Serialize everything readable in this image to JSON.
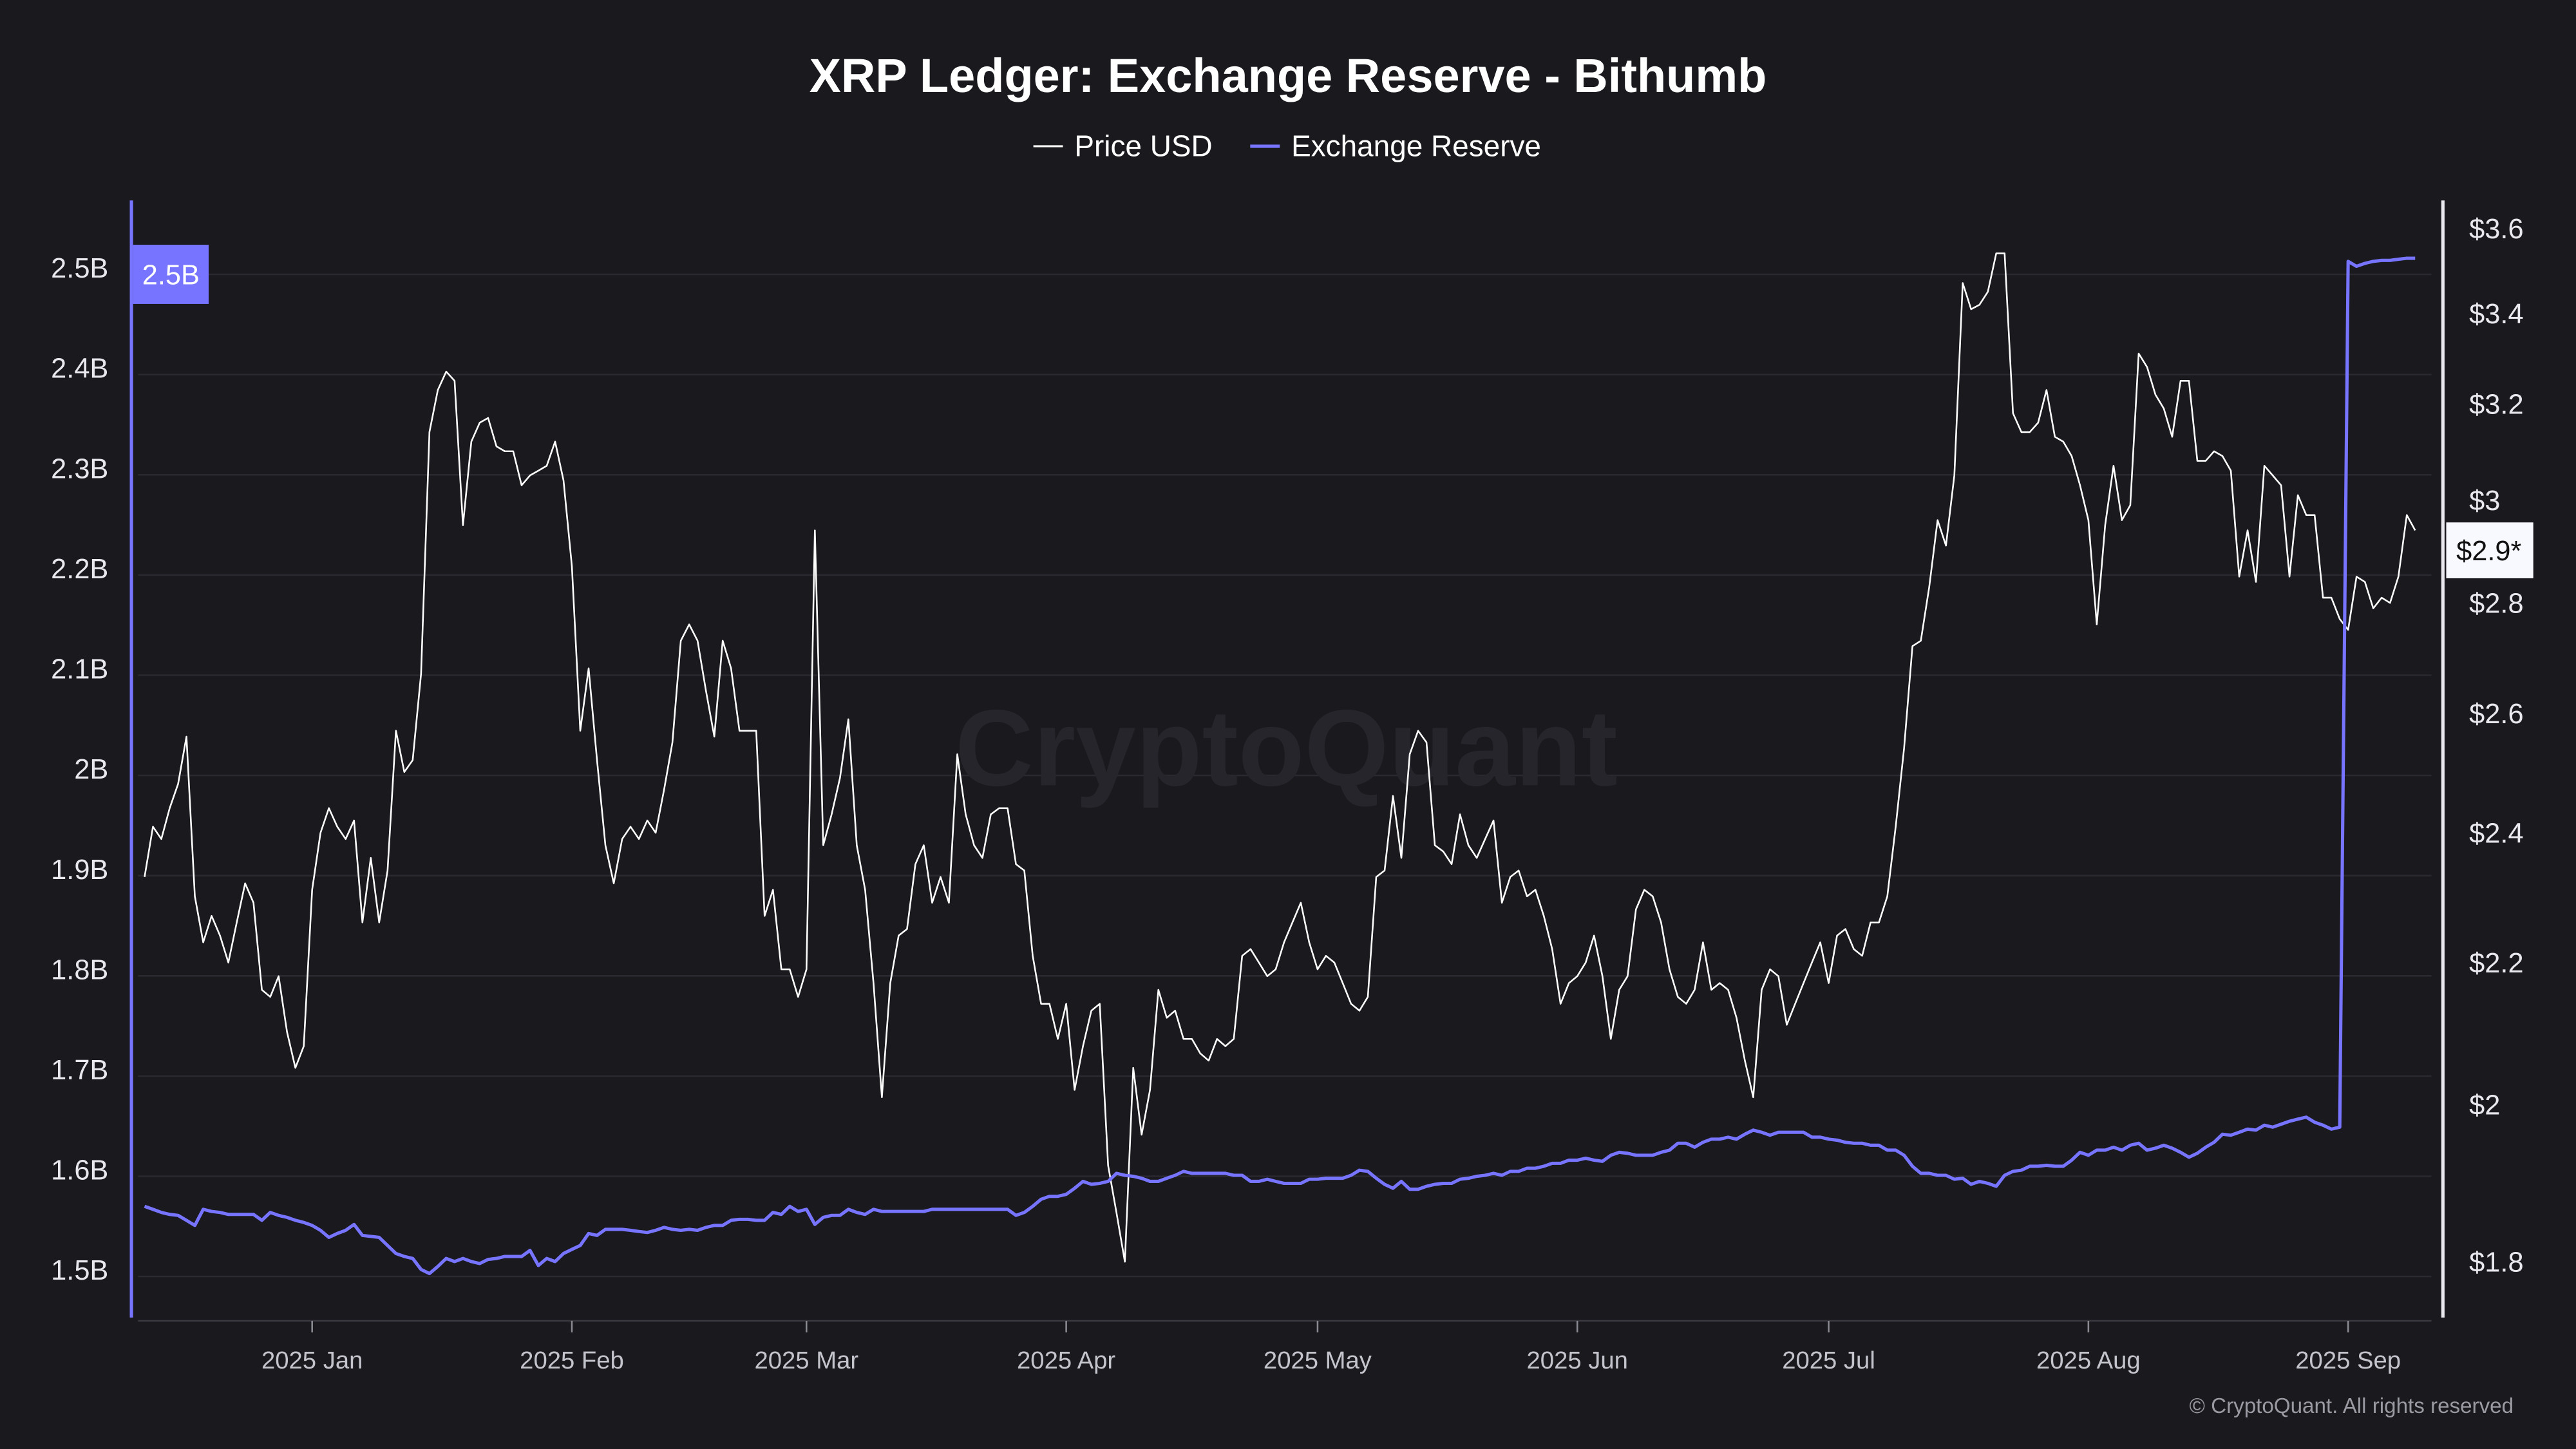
{
  "chart_data": {
    "type": "line",
    "title": "XRP Ledger: Exchange Reserve - Bithumb",
    "legend": {
      "placement": "top-center",
      "entries": [
        "Price USD",
        "Exchange Reserve"
      ]
    },
    "watermark": "CryptoQuant",
    "copyright": "© CryptoQuant. All rights reserved",
    "grid": true,
    "colors": {
      "background": "#1a191e",
      "price": "#ffffff",
      "reserve": "#7774ff",
      "grid": "#2a292f"
    },
    "x_ticks": [
      {
        "date": "2025-01-01",
        "label": "2025 Jan"
      },
      {
        "date": "2025-02-01",
        "label": "2025 Feb"
      },
      {
        "date": "2025-03-01",
        "label": "2025 Mar"
      },
      {
        "date": "2025-04-01",
        "label": "2025 Apr"
      },
      {
        "date": "2025-05-01",
        "label": "2025 May"
      },
      {
        "date": "2025-06-01",
        "label": "2025 Jun"
      },
      {
        "date": "2025-07-01",
        "label": "2025 Jul"
      },
      {
        "date": "2025-08-01",
        "label": "2025 Aug"
      },
      {
        "date": "2025-09-01",
        "label": "2025 Sep"
      }
    ],
    "y_left": {
      "series": "Exchange Reserve",
      "unit": "XRP (billions)",
      "scale": "linear",
      "range": [
        1.5,
        2.5
      ],
      "ticks": [
        {
          "v": 1.5,
          "label": "1.5B"
        },
        {
          "v": 1.6,
          "label": "1.6B"
        },
        {
          "v": 1.7,
          "label": "1.7B"
        },
        {
          "v": 1.8,
          "label": "1.8B"
        },
        {
          "v": 1.9,
          "label": "1.9B"
        },
        {
          "v": 2.0,
          "label": "2B"
        },
        {
          "v": 2.1,
          "label": "2.1B"
        },
        {
          "v": 2.2,
          "label": "2.2B"
        },
        {
          "v": 2.3,
          "label": "2.3B"
        },
        {
          "v": 2.4,
          "label": "2.4B"
        },
        {
          "v": 2.5,
          "label": "2.5B"
        }
      ],
      "current_badge": "2.5B"
    },
    "y_right": {
      "series": "Price USD",
      "scale": "log",
      "range": [
        1.8,
        3.6
      ],
      "ticks": [
        {
          "v": 1.8,
          "label": "$1.8"
        },
        {
          "v": 2.0,
          "label": "$2"
        },
        {
          "v": 2.2,
          "label": "$2.2"
        },
        {
          "v": 2.4,
          "label": "$2.4"
        },
        {
          "v": 2.6,
          "label": "$2.6"
        },
        {
          "v": 2.8,
          "label": "$2.8"
        },
        {
          "v": 3.0,
          "label": "$3"
        },
        {
          "v": 3.2,
          "label": "$3.2"
        },
        {
          "v": 3.4,
          "label": "$3.4"
        },
        {
          "v": 3.6,
          "label": "$3.6"
        }
      ],
      "current_badge": "$2.9*"
    },
    "dates": [
      "2024-12-12",
      "2024-12-13",
      "2024-12-14",
      "2024-12-15",
      "2024-12-16",
      "2024-12-17",
      "2024-12-18",
      "2024-12-19",
      "2024-12-20",
      "2024-12-21",
      "2024-12-22",
      "2024-12-23",
      "2024-12-24",
      "2024-12-25",
      "2024-12-26",
      "2024-12-27",
      "2024-12-28",
      "2024-12-29",
      "2024-12-30",
      "2024-12-31",
      "2025-01-01",
      "2025-01-02",
      "2025-01-03",
      "2025-01-04",
      "2025-01-05",
      "2025-01-06",
      "2025-01-07",
      "2025-01-08",
      "2025-01-09",
      "2025-01-10",
      "2025-01-11",
      "2025-01-12",
      "2025-01-13",
      "2025-01-14",
      "2025-01-15",
      "2025-01-16",
      "2025-01-17",
      "2025-01-18",
      "2025-01-19",
      "2025-01-20",
      "2025-01-21",
      "2025-01-22",
      "2025-01-23",
      "2025-01-24",
      "2025-01-25",
      "2025-01-26",
      "2025-01-27",
      "2025-01-28",
      "2025-01-29",
      "2025-01-30",
      "2025-01-31",
      "2025-02-01",
      "2025-02-02",
      "2025-02-03",
      "2025-02-04",
      "2025-02-05",
      "2025-02-06",
      "2025-02-07",
      "2025-02-08",
      "2025-02-09",
      "2025-02-10",
      "2025-02-11",
      "2025-02-12",
      "2025-02-13",
      "2025-02-14",
      "2025-02-15",
      "2025-02-16",
      "2025-02-17",
      "2025-02-18",
      "2025-02-19",
      "2025-02-20",
      "2025-02-21",
      "2025-02-22",
      "2025-02-23",
      "2025-02-24",
      "2025-02-25",
      "2025-02-26",
      "2025-02-27",
      "2025-02-28",
      "2025-03-01",
      "2025-03-02",
      "2025-03-03",
      "2025-03-04",
      "2025-03-05",
      "2025-03-06",
      "2025-03-07",
      "2025-03-08",
      "2025-03-09",
      "2025-03-10",
      "2025-03-11",
      "2025-03-12",
      "2025-03-13",
      "2025-03-14",
      "2025-03-15",
      "2025-03-16",
      "2025-03-17",
      "2025-03-18",
      "2025-03-19",
      "2025-03-20",
      "2025-03-21",
      "2025-03-22",
      "2025-03-23",
      "2025-03-24",
      "2025-03-25",
      "2025-03-26",
      "2025-03-27",
      "2025-03-28",
      "2025-03-29",
      "2025-03-30",
      "2025-03-31",
      "2025-04-01",
      "2025-04-02",
      "2025-04-03",
      "2025-04-04",
      "2025-04-05",
      "2025-04-06",
      "2025-04-07",
      "2025-04-08",
      "2025-04-09",
      "2025-04-10",
      "2025-04-11",
      "2025-04-12",
      "2025-04-13",
      "2025-04-14",
      "2025-04-15",
      "2025-04-16",
      "2025-04-17",
      "2025-04-18",
      "2025-04-19",
      "2025-04-20",
      "2025-04-21",
      "2025-04-22",
      "2025-04-23",
      "2025-04-24",
      "2025-04-25",
      "2025-04-26",
      "2025-04-27",
      "2025-04-28",
      "2025-04-29",
      "2025-04-30",
      "2025-05-01",
      "2025-05-02",
      "2025-05-03",
      "2025-05-04",
      "2025-05-05",
      "2025-05-06",
      "2025-05-07",
      "2025-05-08",
      "2025-05-09",
      "2025-05-10",
      "2025-05-11",
      "2025-05-12",
      "2025-05-13",
      "2025-05-14",
      "2025-05-15",
      "2025-05-16",
      "2025-05-17",
      "2025-05-18",
      "2025-05-19",
      "2025-05-20",
      "2025-05-21",
      "2025-05-22",
      "2025-05-23",
      "2025-05-24",
      "2025-05-25",
      "2025-05-26",
      "2025-05-27",
      "2025-05-28",
      "2025-05-29",
      "2025-05-30",
      "2025-05-31",
      "2025-06-01",
      "2025-06-02",
      "2025-06-03",
      "2025-06-04",
      "2025-06-05",
      "2025-06-06",
      "2025-06-07",
      "2025-06-08",
      "2025-06-09",
      "2025-06-10",
      "2025-06-11",
      "2025-06-12",
      "2025-06-13",
      "2025-06-14",
      "2025-06-15",
      "2025-06-16",
      "2025-06-17",
      "2025-06-18",
      "2025-06-19",
      "2025-06-20",
      "2025-06-21",
      "2025-06-22",
      "2025-06-23",
      "2025-06-24",
      "2025-06-25",
      "2025-06-26",
      "2025-06-27",
      "2025-06-28",
      "2025-06-29",
      "2025-06-30",
      "2025-07-01",
      "2025-07-02",
      "2025-07-03",
      "2025-07-04",
      "2025-07-05",
      "2025-07-06",
      "2025-07-07",
      "2025-07-08",
      "2025-07-09",
      "2025-07-10",
      "2025-07-11",
      "2025-07-12",
      "2025-07-13",
      "2025-07-14",
      "2025-07-15",
      "2025-07-16",
      "2025-07-17",
      "2025-07-18",
      "2025-07-19",
      "2025-07-20",
      "2025-07-21",
      "2025-07-22",
      "2025-07-23",
      "2025-07-24",
      "2025-07-25",
      "2025-07-26",
      "2025-07-27",
      "2025-07-28",
      "2025-07-29",
      "2025-07-30",
      "2025-07-31",
      "2025-08-01",
      "2025-08-02",
      "2025-08-03",
      "2025-08-04",
      "2025-08-05",
      "2025-08-06",
      "2025-08-07",
      "2025-08-08",
      "2025-08-09",
      "2025-08-10",
      "2025-08-11",
      "2025-08-12",
      "2025-08-13",
      "2025-08-14",
      "2025-08-15",
      "2025-08-16",
      "2025-08-17",
      "2025-08-18",
      "2025-08-19",
      "2025-08-20",
      "2025-08-21",
      "2025-08-22",
      "2025-08-23",
      "2025-08-24",
      "2025-08-25",
      "2025-08-26",
      "2025-08-27",
      "2025-08-28",
      "2025-08-29",
      "2025-08-30",
      "2025-08-31",
      "2025-09-01",
      "2025-09-02",
      "2025-09-03",
      "2025-09-04",
      "2025-09-05",
      "2025-09-06",
      "2025-09-07",
      "2025-09-08",
      "2025-09-09"
    ],
    "series": [
      {
        "name": "Price USD",
        "axis": "right",
        "values": [
          2.33,
          2.41,
          2.39,
          2.44,
          2.48,
          2.56,
          2.3,
          2.23,
          2.27,
          2.24,
          2.2,
          2.26,
          2.32,
          2.29,
          2.16,
          2.15,
          2.18,
          2.1,
          2.05,
          2.08,
          2.31,
          2.4,
          2.44,
          2.41,
          2.39,
          2.42,
          2.26,
          2.36,
          2.26,
          2.34,
          2.57,
          2.5,
          2.52,
          2.67,
          3.14,
          3.23,
          3.27,
          3.25,
          2.95,
          3.12,
          3.16,
          3.17,
          3.11,
          3.1,
          3.1,
          3.03,
          3.05,
          3.06,
          3.07,
          3.12,
          3.04,
          2.87,
          2.57,
          2.68,
          2.52,
          2.38,
          2.32,
          2.39,
          2.41,
          2.39,
          2.42,
          2.4,
          2.47,
          2.55,
          2.73,
          2.76,
          2.73,
          2.64,
          2.56,
          2.73,
          2.68,
          2.57,
          2.57,
          2.57,
          2.27,
          2.31,
          2.19,
          2.19,
          2.15,
          2.19,
          2.94,
          2.38,
          2.43,
          2.49,
          2.59,
          2.38,
          2.31,
          2.17,
          2.01,
          2.17,
          2.24,
          2.25,
          2.35,
          2.38,
          2.29,
          2.33,
          2.29,
          2.53,
          2.43,
          2.38,
          2.36,
          2.43,
          2.44,
          2.44,
          2.35,
          2.34,
          2.21,
          2.14,
          2.14,
          2.09,
          2.14,
          2.02,
          2.08,
          2.13,
          2.14,
          1.92,
          1.86,
          1.8,
          2.05,
          1.96,
          2.02,
          2.16,
          2.12,
          2.13,
          2.09,
          2.09,
          2.07,
          2.06,
          2.09,
          2.08,
          2.09,
          2.21,
          2.22,
          2.2,
          2.18,
          2.19,
          2.23,
          2.26,
          2.29,
          2.23,
          2.19,
          2.21,
          2.2,
          2.17,
          2.14,
          2.13,
          2.15,
          2.33,
          2.34,
          2.46,
          2.36,
          2.53,
          2.57,
          2.55,
          2.38,
          2.37,
          2.35,
          2.43,
          2.38,
          2.36,
          2.39,
          2.42,
          2.29,
          2.33,
          2.34,
          2.3,
          2.31,
          2.27,
          2.22,
          2.14,
          2.17,
          2.18,
          2.2,
          2.24,
          2.18,
          2.09,
          2.16,
          2.18,
          2.28,
          2.31,
          2.3,
          2.26,
          2.19,
          2.15,
          2.14,
          2.16,
          2.23,
          2.16,
          2.17,
          2.16,
          2.12,
          2.06,
          2.01,
          2.16,
          2.19,
          2.18,
          2.11,
          2.14,
          2.17,
          2.2,
          2.23,
          2.17,
          2.24,
          2.25,
          2.22,
          2.21,
          2.26,
          2.26,
          2.3,
          2.41,
          2.54,
          2.72,
          2.73,
          2.83,
          2.96,
          2.91,
          3.05,
          3.47,
          3.41,
          3.42,
          3.45,
          3.54,
          3.54,
          3.18,
          3.14,
          3.14,
          3.16,
          3.23,
          3.13,
          3.12,
          3.09,
          3.03,
          2.96,
          2.76,
          2.95,
          3.07,
          2.96,
          2.99,
          3.31,
          3.28,
          3.22,
          3.19,
          3.13,
          3.25,
          3.25,
          3.08,
          3.08,
          3.1,
          3.09,
          3.06,
          2.85,
          2.94,
          2.84,
          3.07,
          3.05,
          3.03,
          2.85,
          3.01,
          2.97,
          2.97,
          2.81,
          2.81,
          2.77,
          2.75,
          2.85,
          2.84,
          2.79,
          2.81,
          2.8,
          2.85,
          2.97,
          2.94
        ]
      },
      {
        "name": "Exchange Reserve",
        "axis": "left",
        "values": [
          1.57,
          1.567,
          1.564,
          1.562,
          1.561,
          1.556,
          1.551,
          1.567,
          1.565,
          1.564,
          1.562,
          1.562,
          1.562,
          1.562,
          1.556,
          1.564,
          1.561,
          1.559,
          1.556,
          1.554,
          1.551,
          1.546,
          1.539,
          1.543,
          1.546,
          1.552,
          1.541,
          1.54,
          1.539,
          1.531,
          1.523,
          1.52,
          1.518,
          1.507,
          1.503,
          1.51,
          1.518,
          1.515,
          1.518,
          1.515,
          1.513,
          1.517,
          1.518,
          1.52,
          1.52,
          1.52,
          1.526,
          1.511,
          1.518,
          1.515,
          1.523,
          1.527,
          1.531,
          1.543,
          1.541,
          1.547,
          1.547,
          1.547,
          1.546,
          1.545,
          1.544,
          1.546,
          1.549,
          1.547,
          1.546,
          1.547,
          1.546,
          1.549,
          1.551,
          1.551,
          1.556,
          1.557,
          1.557,
          1.556,
          1.556,
          1.564,
          1.562,
          1.57,
          1.565,
          1.567,
          1.552,
          1.559,
          1.561,
          1.561,
          1.567,
          1.564,
          1.562,
          1.567,
          1.565,
          1.565,
          1.565,
          1.565,
          1.565,
          1.565,
          1.567,
          1.567,
          1.567,
          1.567,
          1.567,
          1.567,
          1.567,
          1.567,
          1.567,
          1.567,
          1.561,
          1.564,
          1.57,
          1.577,
          1.58,
          1.58,
          1.582,
          1.588,
          1.595,
          1.592,
          1.593,
          1.595,
          1.603,
          1.601,
          1.6,
          1.598,
          1.595,
          1.595,
          1.598,
          1.601,
          1.605,
          1.603,
          1.603,
          1.603,
          1.603,
          1.603,
          1.601,
          1.601,
          1.595,
          1.595,
          1.597,
          1.595,
          1.593,
          1.593,
          1.593,
          1.597,
          1.597,
          1.598,
          1.598,
          1.598,
          1.601,
          1.606,
          1.605,
          1.598,
          1.592,
          1.588,
          1.595,
          1.587,
          1.587,
          1.59,
          1.592,
          1.593,
          1.593,
          1.597,
          1.598,
          1.6,
          1.601,
          1.603,
          1.601,
          1.605,
          1.605,
          1.608,
          1.608,
          1.61,
          1.613,
          1.613,
          1.616,
          1.616,
          1.618,
          1.616,
          1.615,
          1.621,
          1.624,
          1.623,
          1.621,
          1.621,
          1.621,
          1.624,
          1.626,
          1.633,
          1.633,
          1.629,
          1.634,
          1.637,
          1.637,
          1.639,
          1.637,
          1.642,
          1.646,
          1.644,
          1.641,
          1.644,
          1.644,
          1.644,
          1.644,
          1.639,
          1.639,
          1.637,
          1.636,
          1.634,
          1.633,
          1.633,
          1.631,
          1.631,
          1.626,
          1.626,
          1.621,
          1.61,
          1.603,
          1.603,
          1.601,
          1.601,
          1.597,
          1.598,
          1.592,
          1.595,
          1.593,
          1.59,
          1.601,
          1.605,
          1.606,
          1.61,
          1.61,
          1.611,
          1.61,
          1.61,
          1.616,
          1.624,
          1.621,
          1.626,
          1.626,
          1.629,
          1.626,
          1.631,
          1.633,
          1.626,
          1.628,
          1.631,
          1.628,
          1.624,
          1.619,
          1.623,
          1.629,
          1.634,
          1.642,
          1.641,
          1.644,
          1.647,
          1.646,
          1.651,
          1.649,
          1.652,
          1.655,
          1.657,
          1.659,
          1.654,
          1.651,
          1.647,
          1.649,
          2.513,
          2.508,
          2.511,
          2.513,
          2.514,
          2.514,
          2.515,
          2.516,
          2.516
        ]
      }
    ]
  }
}
